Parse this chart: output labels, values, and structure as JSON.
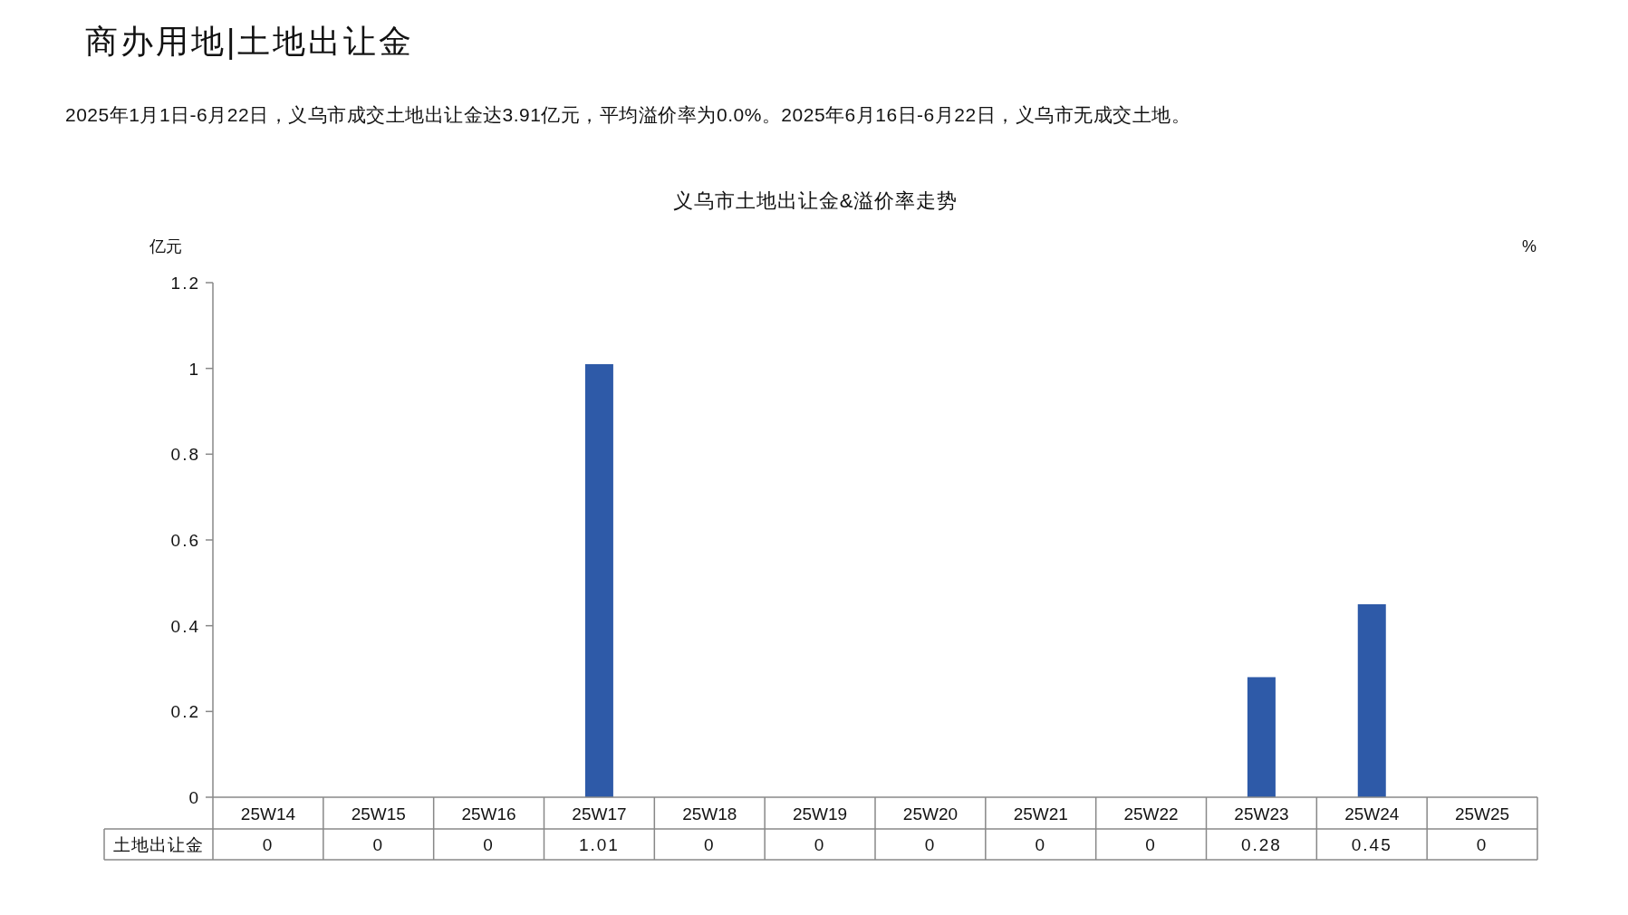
{
  "chart_data": {
    "type": "bar",
    "title": "义乌市土地出让金&溢价率走势",
    "annotations": [
      "商办用地|土地出让金",
      "2025年1月1日-6月22日，义乌市成交土地出让金达3.91亿元，平均溢价率为0.0%。2025年6月16日-6月22日，义乌市无成交土地。"
    ],
    "ylabel": "亿元",
    "y2label": "%",
    "categories": [
      "25W14",
      "25W15",
      "25W16",
      "25W17",
      "25W18",
      "25W19",
      "25W20",
      "25W21",
      "25W22",
      "25W23",
      "25W24",
      "25W25"
    ],
    "series": [
      {
        "name": "土地出让金",
        "color": "#2e5aa8",
        "values": [
          0,
          0,
          0,
          1.01,
          0,
          0,
          0,
          0,
          0,
          0.28,
          0.45,
          0
        ]
      }
    ],
    "ylim": [
      0,
      1.2
    ],
    "yticks": [
      0,
      0.2,
      0.4,
      0.6,
      0.8,
      1,
      1.2
    ],
    "data_labels": true
  }
}
